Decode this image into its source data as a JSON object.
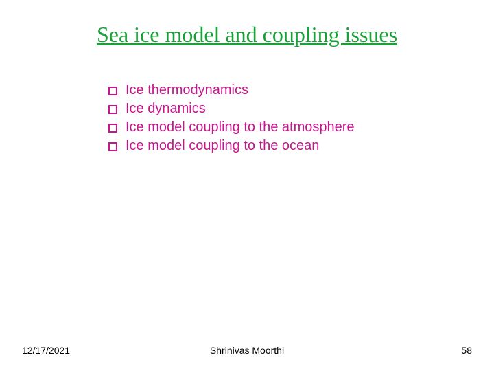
{
  "colors": {
    "title": "#1aa038",
    "bullet_box": "#c6168d",
    "bullet_text": "#c6168d"
  },
  "title": "Sea ice model and coupling issues",
  "bullets": [
    "Ice thermodynamics",
    "Ice dynamics",
    "Ice model coupling to the atmosphere",
    "Ice model coupling to the ocean"
  ],
  "footer": {
    "date": "12/17/2021",
    "author": "Shrinivas Moorthi",
    "page": "58"
  }
}
